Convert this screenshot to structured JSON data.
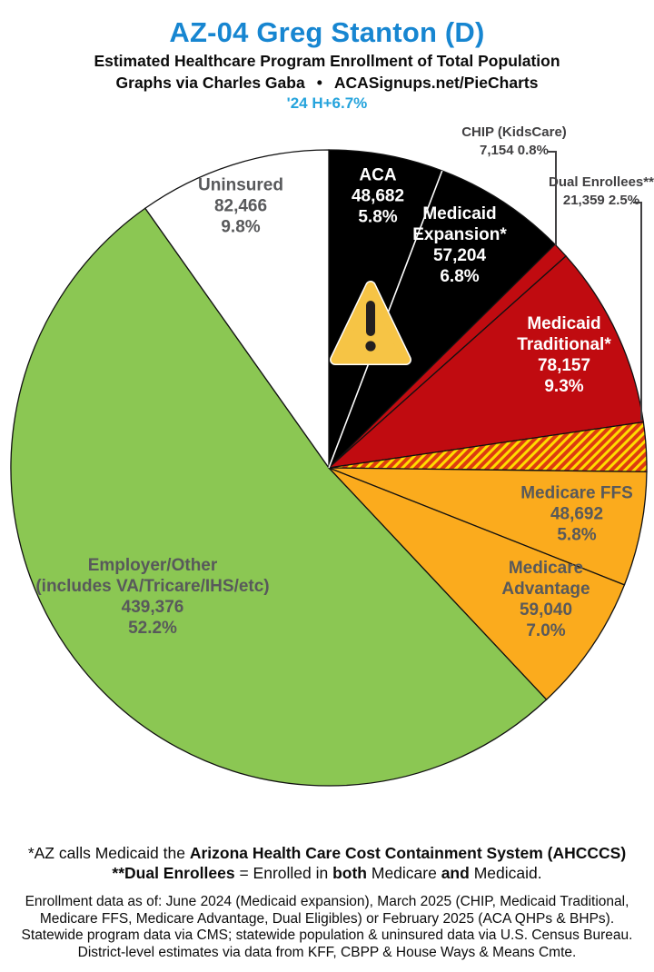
{
  "header": {
    "title": "AZ-04 Greg Stanton (D)",
    "title_color": "#1786D1",
    "subtitle1": "Estimated Healthcare Program Enrollment of Total Population",
    "subtitle2_left": "Graphs via Charles Gaba",
    "subtitle2_bullet": "•",
    "subtitle2_right": "ACASignups.net/PieCharts",
    "change_label": "'24 H+6.7%",
    "change_color": "#24A3DC"
  },
  "chart_data": {
    "type": "pie",
    "direction": "clockwise",
    "start_angle_deg": 0,
    "total_pct": 100.0,
    "slices": [
      {
        "id": "aca",
        "label": "ACA",
        "value": 48682,
        "value_text": "48,682",
        "pct": 5.8,
        "pct_text": "5.8%",
        "color": "#000000",
        "text_color": "#FFFFFF"
      },
      {
        "id": "medicaid-expansion",
        "label": "Medicaid Expansion*",
        "value": 57204,
        "value_text": "57,204",
        "pct": 6.8,
        "pct_text": "6.8%",
        "color": "#000000",
        "text_color": "#FFFFFF"
      },
      {
        "id": "chip",
        "label": "CHIP (KidsCare)",
        "value": 7154,
        "value_text": "7,154",
        "pct": 0.8,
        "pct_text": "0.8%",
        "value_pct_text": "7,154 0.8%",
        "color": "#C00B10",
        "text_color": "#414042",
        "callout": true
      },
      {
        "id": "medicaid-traditional",
        "label": "Medicaid Traditional*",
        "value": 78157,
        "value_text": "78,157",
        "pct": 9.3,
        "pct_text": "9.3%",
        "color": "#C00B10",
        "text_color": "#FFFFFF"
      },
      {
        "id": "dual-enrollees",
        "label": "Dual Enrollees**",
        "value": 21359,
        "value_text": "21,359",
        "pct": 2.5,
        "pct_text": "2.5%",
        "value_pct_text": "21,359 2.5%",
        "color": "hatch:red-yellow",
        "text_color": "#414042",
        "callout": true
      },
      {
        "id": "medicare-ffs",
        "label": "Medicare FFS",
        "value": 48692,
        "value_text": "48,692",
        "pct": 5.8,
        "pct_text": "5.8%",
        "color": "#FBAB1D",
        "text_color": "#58595B"
      },
      {
        "id": "medicare-advantage",
        "label": "Medicare Advantage",
        "value": 59040,
        "value_text": "59,040",
        "pct": 7.0,
        "pct_text": "7.0%",
        "color": "#FBAB1D",
        "text_color": "#58595B"
      },
      {
        "id": "employer-other",
        "label": "Employer/Other",
        "label2": "(includes VA/Tricare/IHS/etc)",
        "value": 439376,
        "value_text": "439,376",
        "pct": 52.2,
        "pct_text": "52.2%",
        "color": "#8BC753",
        "text_color": "#58595B"
      },
      {
        "id": "uninsured",
        "label": "Uninsured",
        "value": 82466,
        "value_text": "82,466",
        "pct": 9.8,
        "pct_text": "9.8%",
        "color": "#FFFFFF",
        "text_color": "#58595B"
      }
    ],
    "hatch_colors": {
      "yellow": "#FFDB00",
      "red": "#DD3B10"
    },
    "outline_color": "#111111",
    "divider_color": "#FFFFFF"
  },
  "warning_icon": {
    "meaning": "warning",
    "fill": "#F6C445",
    "mark_color": "#231F20",
    "border": "#FFFFFF"
  },
  "footnotes": {
    "line1": [
      {
        "t": "*AZ calls Medicaid the ",
        "b": false
      },
      {
        "t": "Arizona Health Care Cost Containment System (AHCCCS)",
        "b": true
      }
    ],
    "line2": [
      {
        "t": "**Dual Enrollees",
        "b": true
      },
      {
        "t": " = Enrolled in ",
        "b": false
      },
      {
        "t": "both",
        "b": true
      },
      {
        "t": " Medicare ",
        "b": false
      },
      {
        "t": "and",
        "b": true
      },
      {
        "t": " Medicaid.",
        "b": false
      }
    ],
    "data_lines": [
      "Enrollment data as of: June 2024 (Medicaid expansion), March 2025 (CHIP, Medicaid Traditional,",
      "Medicare FFS, Medicare Advantage, Dual Eligibles) or February 2025 (ACA QHPs & BHPs).",
      "Statewide program data via CMS; statewide population & uninsured data via U.S. Census Bureau.",
      "District-level estimates via data from KFF, CBPP & House Ways & Means Cmte."
    ]
  }
}
